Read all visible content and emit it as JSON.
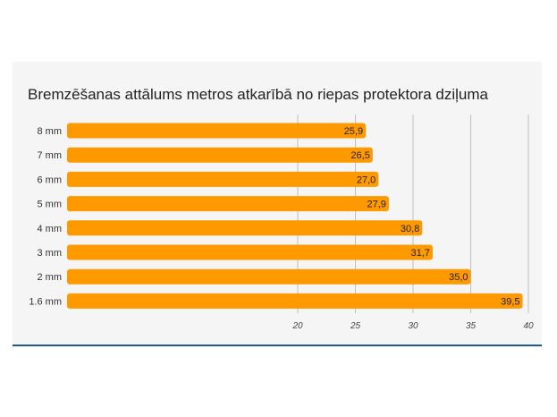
{
  "chart_data": {
    "type": "bar",
    "orientation": "horizontal",
    "title": "Bremzēšanas attālums metros atkarībā no riepas protektora dziļuma",
    "categories": [
      "8 mm",
      "7 mm",
      "6 mm",
      "5 mm",
      "4 mm",
      "3 mm",
      "2 mm",
      "1.6 mm"
    ],
    "values": [
      25.9,
      26.5,
      27.0,
      27.9,
      30.8,
      31.7,
      35.0,
      39.5
    ],
    "value_labels": [
      "25,9",
      "26,5",
      "27,0",
      "27,9",
      "30,8",
      "31,7",
      "35,0",
      "39,5"
    ],
    "x_ticks": [
      20,
      25,
      30,
      35,
      40
    ],
    "x_tick_labels": [
      "20",
      "25",
      "30",
      "35",
      "40"
    ],
    "xlim": [
      0,
      40
    ],
    "xlabel": "",
    "ylabel": "",
    "grid": true,
    "bar_color": "#ff9900",
    "grid_color": "#bfbfbf"
  }
}
